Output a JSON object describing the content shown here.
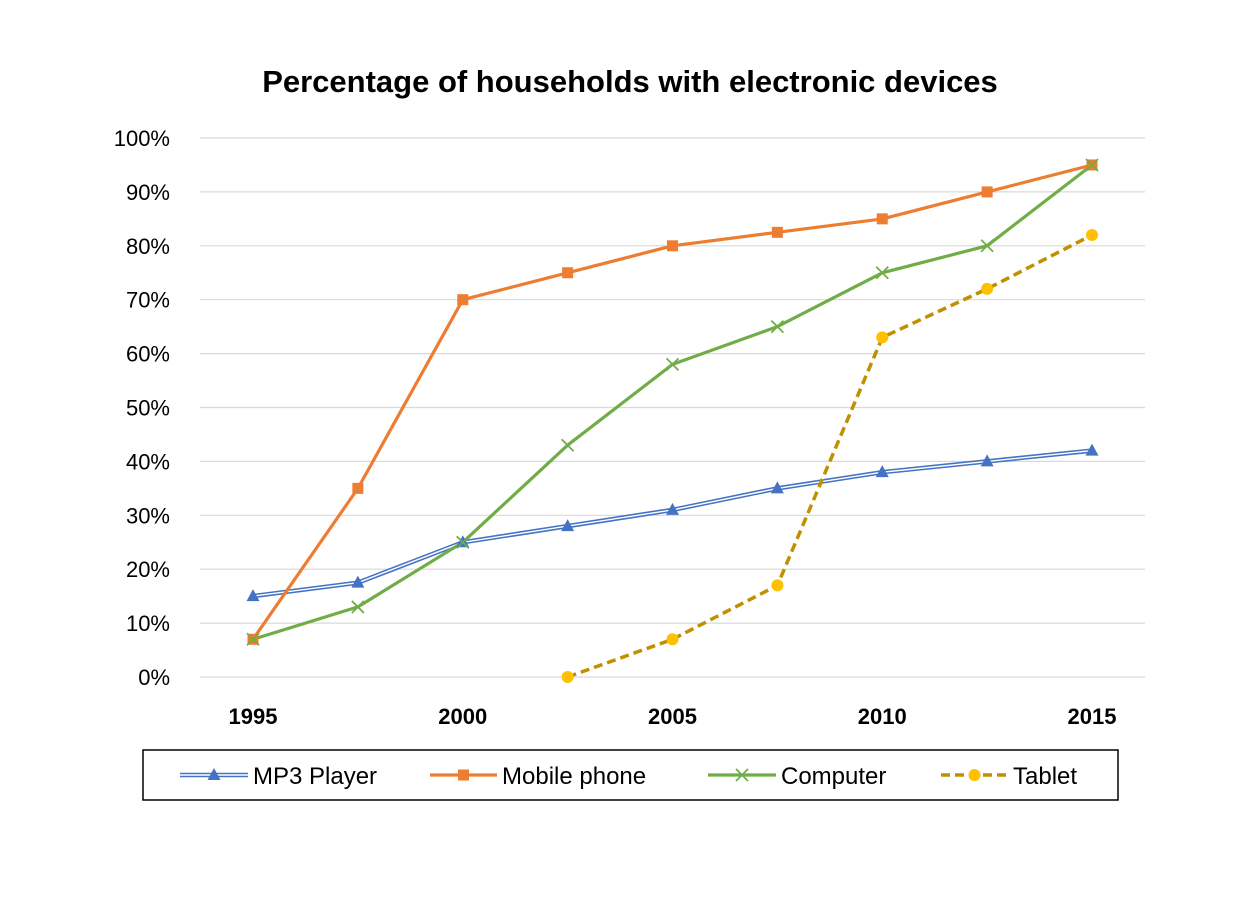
{
  "chart_data": {
    "type": "line",
    "title": "Percentage of households with electronic devices",
    "xlabel": "",
    "ylabel": "",
    "x": [
      1995,
      1997.5,
      2000,
      2002.5,
      2005,
      2007.5,
      2010,
      2012.5,
      2015
    ],
    "x_tick_labels": [
      "1995",
      "2000",
      "2005",
      "2010",
      "2015"
    ],
    "x_tick_values": [
      1995,
      2000,
      2005,
      2010,
      2015
    ],
    "xlim": [
      1995,
      2015
    ],
    "y_tick_labels": [
      "0%",
      "10%",
      "20%",
      "30%",
      "40%",
      "50%",
      "60%",
      "70%",
      "80%",
      "90%",
      "100%"
    ],
    "y_tick_values": [
      0,
      10,
      20,
      30,
      40,
      50,
      60,
      70,
      80,
      90,
      100
    ],
    "ylim": [
      0,
      100
    ],
    "grid": true,
    "legend_position": "bottom",
    "series": [
      {
        "name": "MP3 Player",
        "color": "#4472C4",
        "marker": "triangle",
        "line_style": "double",
        "values": [
          15,
          17.5,
          25,
          28,
          31,
          35,
          38,
          40,
          42
        ]
      },
      {
        "name": "Mobile phone",
        "color": "#ED7D31",
        "marker": "square",
        "line_style": "solid",
        "values": [
          7,
          35,
          70,
          75,
          80,
          82.5,
          85,
          90,
          95
        ]
      },
      {
        "name": "Computer",
        "color": "#70AD47",
        "marker": "x",
        "line_style": "solid",
        "values": [
          7,
          13,
          25,
          43,
          58,
          65,
          75,
          80,
          95
        ]
      },
      {
        "name": "Tablet",
        "color": "#BF9000",
        "marker_color": "#FFC000",
        "marker": "circle",
        "line_style": "dashed",
        "values": [
          null,
          null,
          null,
          0,
          7,
          17,
          63,
          72,
          82
        ]
      }
    ]
  }
}
